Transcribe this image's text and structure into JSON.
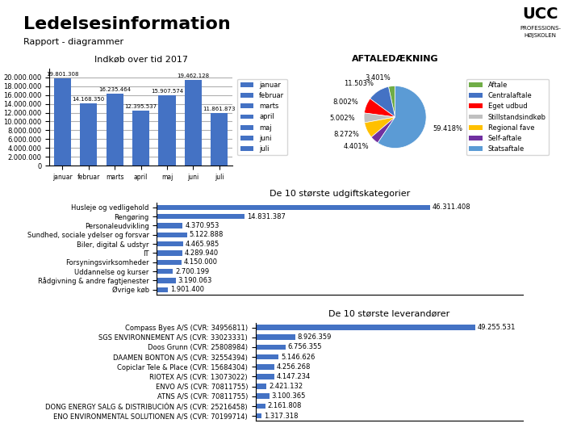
{
  "title": "Ledelsesinformation",
  "subtitle": "Rapport - diagrammer",
  "annotations": [
    "UCC",
    "PROFESSIONS-\nHØJSKOLEN"
  ],
  "chart_data": [
    {
      "type": "bar",
      "title": "Indkøb over tid 2017",
      "categories": [
        "januar",
        "februar",
        "marts",
        "april",
        "maj",
        "juni",
        "juli"
      ],
      "values": [
        19801308,
        14168350,
        16235464,
        12395537,
        15907574,
        19462128,
        11861873
      ],
      "value_labels": [
        "19.801.308",
        "14.168.350",
        "16.235.464",
        "12.395.537",
        "15.907.574",
        "19.462.128",
        "11.861.873"
      ],
      "data_labels": true,
      "color": "#4472C4",
      "ylim": [
        0,
        22000000
      ],
      "yticks": [
        0,
        {
          "value": 2000000,
          "label": "2.000.000"
        },
        {
          "value": 4000000,
          "label": "4.000.000"
        },
        {
          "value": 6000000,
          "label": "6.000.000"
        },
        {
          "value": 8000000,
          "label": "8.000.000"
        },
        {
          "value": 10000000,
          "label": "10.000.000"
        },
        {
          "value": 12000000,
          "label": "12.000.000"
        },
        {
          "value": 14000000,
          "label": "14.000.000"
        },
        {
          "value": 16000000,
          "label": "16.000.000"
        },
        {
          "value": 18000000,
          "label": "18.000.000"
        },
        {
          "value": 20000000,
          "label": "20.000.000"
        }
      ],
      "grid": true,
      "legend": "right"
    },
    {
      "type": "bar",
      "orientation": "horizontal",
      "title": "De 10 største udgiftskategorier",
      "categories": [
        "Husleje og vedligehold",
        "Rengøring",
        "Personaleudvikling",
        "Sundhed, sociale ydelser og forsvar",
        "Biler, digital & udstyr",
        "IT",
        "Forsyningsvirksomheder",
        "Uddannelse og kurser",
        "Rådgivning & andre fagtjenester",
        "Øvrige køb"
      ],
      "values": [
        46311408,
        14831387,
        4370953,
        5122888,
        4465985,
        4289940,
        4150000,
        2700199,
        3190063,
        1901400
      ],
      "value_labels": [
        "46.311.408",
        "14.831.387",
        "4.370.953",
        "5.122.888",
        "4.465.985",
        "4.289.940",
        "4.150.000",
        "2.700.199",
        "3.190.063",
        "1.901.400"
      ],
      "data_labels": true,
      "color": "#4472C4",
      "xlim": [
        0,
        62000000
      ],
      "tick_labels": "y",
      "grid": false
    },
    {
      "type": "bar",
      "orientation": "horizontal",
      "title": "De 10 største leverandører",
      "categories": [
        "Compass Byes A/S (CVR: 34956811)",
        "SGS ENVIRONNEMENT A/S (CVR: 33023331)",
        "Doos Grunn (CVR: 25808984)",
        "DAAMEN BONTON A/S (CVR: 32554394)",
        "Copiclar Tele & Place (CVR: 15684304)",
        "RIOTEX A/S (CVR: 13073022)",
        "ENVO A/S (CVR: 70811755)",
        "ATNS A/S (CVR: 70811755)",
        "DONG ENERGY SALG & DISTRIBUCIÓN A/S (CVR: 25216458)",
        "ENO ENVIRONMENTAL SOLUTIONEN A/S (CVR: 70199714)"
      ],
      "values": [
        49255531,
        8926359,
        6756355,
        5146626,
        4256268,
        4147234,
        2421132,
        3100365,
        2161808,
        1317318
      ],
      "value_labels": [
        "49.255.531",
        "8.926.359",
        "6.756.355",
        "5.146.626",
        "4.256.268",
        "4.147.234",
        "2.421.132",
        "3.100.365",
        "2.161.808",
        "1.317.318"
      ],
      "data_labels": true,
      "color": "#4472C4",
      "xlim": [
        0,
        60000000
      ],
      "tick_labels": "y",
      "grid": false
    },
    {
      "type": "pie",
      "title": "AFTALEDÆKNING",
      "categories": [
        "Aftale",
        "Centralaftale",
        "Eget udbud",
        "Stillstandsindkøb",
        "Regional fave",
        "Self-aftale",
        "Statsaftale"
      ],
      "values": [
        3.401,
        11.503,
        8.002,
        5.002,
        8.272,
        4.401,
        59.418
      ],
      "value_labels": [
        "3.401%",
        "11.503%",
        "8.002%",
        "5.002%",
        "8.272%",
        "4.401%",
        "59.418%"
      ],
      "data_labels": true,
      "colors": [
        "#70AD47",
        "#4472C4",
        "#FF0000",
        "#C0C0C0",
        "#FFC000",
        "#7030A0",
        "#5B9BD5"
      ],
      "legend": "right"
    }
  ]
}
